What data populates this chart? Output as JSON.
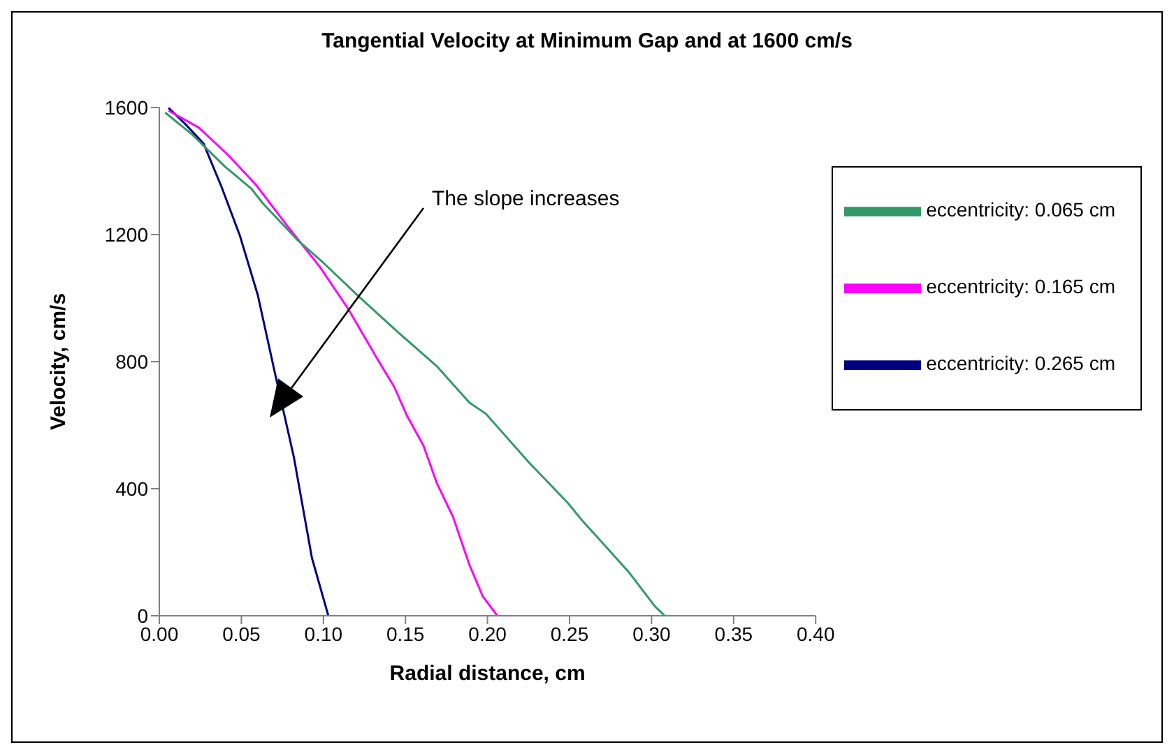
{
  "chart_data": {
    "type": "line",
    "title": "Tangential Velocity at Minimum Gap and at 1600 cm/s",
    "xlabel": "Radial distance, cm",
    "ylabel": "Velocity, cm/s",
    "xlim": [
      0,
      0.4
    ],
    "xticks": [
      {
        "value": 0,
        "label": "0.00"
      },
      {
        "value": 0.05,
        "label": "0.05"
      },
      {
        "value": 0.1,
        "label": "0.10"
      },
      {
        "value": 0.15,
        "label": "0.15"
      },
      {
        "value": 0.2,
        "label": "0.20"
      },
      {
        "value": 0.25,
        "label": "0.25"
      },
      {
        "value": 0.3,
        "label": "0.30"
      },
      {
        "value": 0.35,
        "label": "0.35"
      },
      {
        "value": 0.4,
        "label": "0.40"
      }
    ],
    "ylim": [
      0,
      1600
    ],
    "yticks": [
      0,
      400,
      800,
      1200,
      1600
    ],
    "grid": false,
    "legend": "right",
    "marker": "none",
    "line_style": "solid",
    "annotations": [
      "The slope increases"
    ],
    "series": [
      {
        "name": "eccentricity: 0.265 cm",
        "color": "#000080",
        "x": [
          0.0056,
          0.016,
          0.027,
          0.038,
          0.049,
          0.06,
          0.071,
          0.082,
          0.093,
          0.103
        ],
        "values": [
          1599,
          1547,
          1486,
          1349,
          1198,
          1010,
          751,
          499,
          182,
          0
        ]
      },
      {
        "name": "eccentricity: 0.165 cm",
        "color": "#ff00ff",
        "x": [
          0.0056,
          0.024,
          0.042,
          0.059,
          0.078,
          0.098,
          0.115,
          0.132,
          0.143,
          0.151,
          0.161,
          0.169,
          0.179,
          0.189,
          0.197,
          0.206
        ],
        "values": [
          1590,
          1537,
          1450,
          1356,
          1227,
          1097,
          967,
          816,
          722,
          629,
          535,
          419,
          311,
          160,
          62,
          0
        ]
      },
      {
        "name": "eccentricity: 0.065 cm",
        "color": "#339966",
        "x": [
          0.0036,
          0.02,
          0.04,
          0.056,
          0.063,
          0.084,
          0.1,
          0.122,
          0.145,
          0.169,
          0.189,
          0.199,
          0.225,
          0.249,
          0.257,
          0.267,
          0.286,
          0.302,
          0.308
        ],
        "values": [
          1584,
          1515,
          1414,
          1345,
          1299,
          1184,
          1111,
          1003,
          895,
          786,
          671,
          636,
          484,
          355,
          304,
          247,
          138,
          30,
          0
        ]
      }
    ]
  }
}
